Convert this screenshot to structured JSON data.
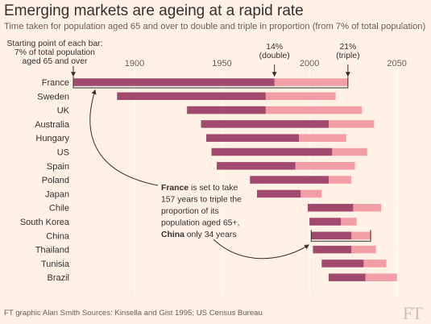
{
  "title": "Emerging markets are ageing at a rapid rate",
  "subtitle": "Time taken for population aged 65 and over to double and triple in proportion (from 7% of total population)",
  "footer": "FT graphic Alan Smith   Sources: Kinsella and Gist 1995; US Census Bureau",
  "logo": "FT",
  "colors": {
    "background": "#fff1e5",
    "double": "#a14a6e",
    "triple": "#f29ea6",
    "grid": "#ffffff",
    "text": "#33302e"
  },
  "annotations": {
    "start_note": [
      "Starting point of each bar:",
      "7% of total population",
      "aged 65 and over"
    ],
    "double_note": [
      "14%",
      "(double)"
    ],
    "triple_note": [
      "21%",
      "(triple)"
    ],
    "story": {
      "lines": [
        [
          {
            "text": "France",
            "bold": true
          },
          {
            "text": " is set to take",
            "bold": false
          }
        ],
        [
          {
            "text": "157 years to triple the",
            "bold": false
          }
        ],
        [
          {
            "text": "proportion of its",
            "bold": false
          }
        ],
        [
          {
            "text": "population aged 65+,",
            "bold": false
          }
        ],
        [
          {
            "text": "China",
            "bold": true
          },
          {
            "text": " only 34 years",
            "bold": false
          }
        ]
      ]
    }
  },
  "chart_data": {
    "type": "bar",
    "orientation": "horizontal",
    "stacked": true,
    "xlim": [
      1865,
      2052
    ],
    "xticks": [
      "1900",
      "1950",
      "2000",
      "2050"
    ],
    "grid": true,
    "categories": [
      "France",
      "Sweden",
      "UK",
      "Australia",
      "Hungary",
      "US",
      "Spain",
      "Poland",
      "Japan",
      "Chile",
      "South Korea",
      "China",
      "Thailand",
      "Tunisia",
      "Brazil"
    ],
    "start_year": [
      1865,
      1890,
      1930,
      1938,
      1941,
      1944,
      1947,
      1966,
      1970,
      1999,
      2000,
      2001,
      2002,
      2007,
      2011
    ],
    "double_year": [
      1980,
      1975,
      1975,
      2011,
      1994,
      2013,
      1992,
      2011,
      1995,
      2025,
      2018,
      2024,
      2024,
      2031,
      2032
    ],
    "triple_year": [
      2022,
      2015,
      2030,
      2037,
      2021,
      2033,
      2026,
      2024,
      2007,
      2041,
      2027,
      2035,
      2038,
      2044,
      2050
    ],
    "series": [
      {
        "name": "14% (double)",
        "key": "double_year"
      },
      {
        "name": "21% (triple)",
        "key": "triple_year"
      }
    ]
  }
}
